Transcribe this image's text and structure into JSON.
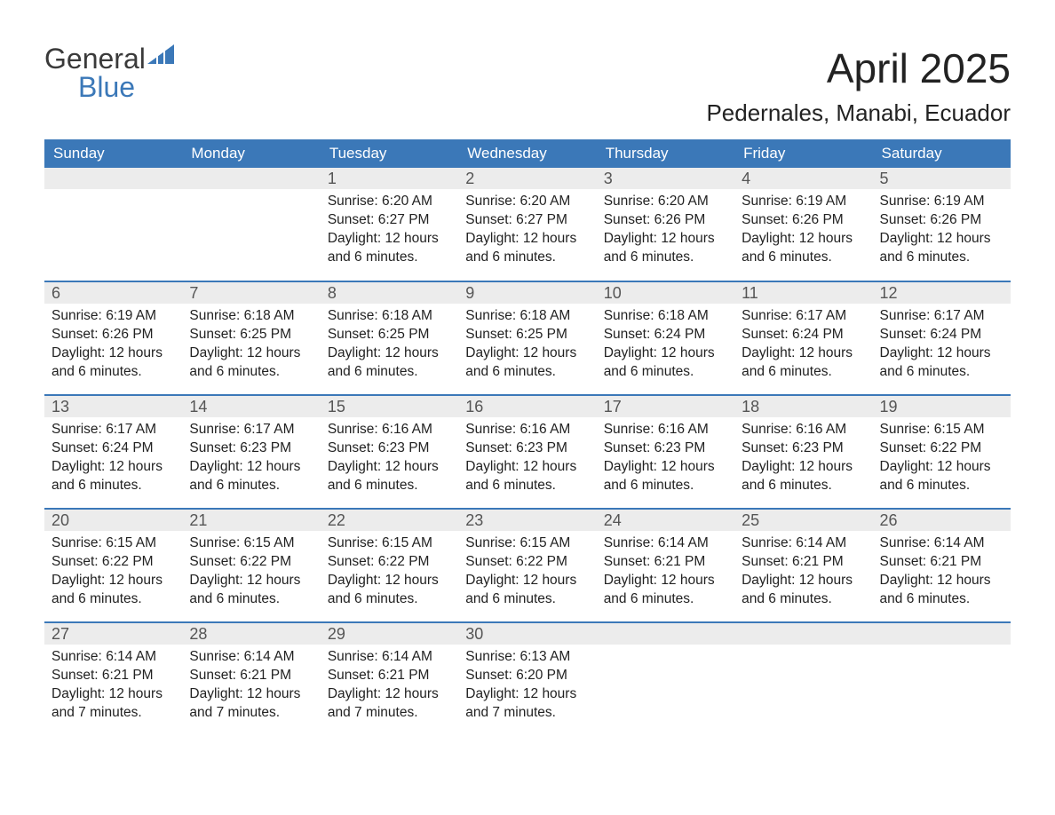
{
  "logo": {
    "text_general": "General",
    "text_blue": "Blue",
    "icon_color": "#3b78b8"
  },
  "title": {
    "month_year": "April 2025",
    "location": "Pedernales, Manabi, Ecuador"
  },
  "colors": {
    "header_bg": "#3b78b8",
    "header_text": "#ffffff",
    "band_bg": "#ececec",
    "row_border": "#3b78b8",
    "body_text": "#222222",
    "daynum_text": "#555555"
  },
  "weekdays": [
    "Sunday",
    "Monday",
    "Tuesday",
    "Wednesday",
    "Thursday",
    "Friday",
    "Saturday"
  ],
  "labels": {
    "sunrise": "Sunrise:",
    "sunset": "Sunset:",
    "daylight_prefix": "Daylight:"
  },
  "weeks": [
    [
      null,
      null,
      {
        "day": "1",
        "sunrise": "6:20 AM",
        "sunset": "6:27 PM",
        "daylight": "12 hours and 6 minutes."
      },
      {
        "day": "2",
        "sunrise": "6:20 AM",
        "sunset": "6:27 PM",
        "daylight": "12 hours and 6 minutes."
      },
      {
        "day": "3",
        "sunrise": "6:20 AM",
        "sunset": "6:26 PM",
        "daylight": "12 hours and 6 minutes."
      },
      {
        "day": "4",
        "sunrise": "6:19 AM",
        "sunset": "6:26 PM",
        "daylight": "12 hours and 6 minutes."
      },
      {
        "day": "5",
        "sunrise": "6:19 AM",
        "sunset": "6:26 PM",
        "daylight": "12 hours and 6 minutes."
      }
    ],
    [
      {
        "day": "6",
        "sunrise": "6:19 AM",
        "sunset": "6:26 PM",
        "daylight": "12 hours and 6 minutes."
      },
      {
        "day": "7",
        "sunrise": "6:18 AM",
        "sunset": "6:25 PM",
        "daylight": "12 hours and 6 minutes."
      },
      {
        "day": "8",
        "sunrise": "6:18 AM",
        "sunset": "6:25 PM",
        "daylight": "12 hours and 6 minutes."
      },
      {
        "day": "9",
        "sunrise": "6:18 AM",
        "sunset": "6:25 PM",
        "daylight": "12 hours and 6 minutes."
      },
      {
        "day": "10",
        "sunrise": "6:18 AM",
        "sunset": "6:24 PM",
        "daylight": "12 hours and 6 minutes."
      },
      {
        "day": "11",
        "sunrise": "6:17 AM",
        "sunset": "6:24 PM",
        "daylight": "12 hours and 6 minutes."
      },
      {
        "day": "12",
        "sunrise": "6:17 AM",
        "sunset": "6:24 PM",
        "daylight": "12 hours and 6 minutes."
      }
    ],
    [
      {
        "day": "13",
        "sunrise": "6:17 AM",
        "sunset": "6:24 PM",
        "daylight": "12 hours and 6 minutes."
      },
      {
        "day": "14",
        "sunrise": "6:17 AM",
        "sunset": "6:23 PM",
        "daylight": "12 hours and 6 minutes."
      },
      {
        "day": "15",
        "sunrise": "6:16 AM",
        "sunset": "6:23 PM",
        "daylight": "12 hours and 6 minutes."
      },
      {
        "day": "16",
        "sunrise": "6:16 AM",
        "sunset": "6:23 PM",
        "daylight": "12 hours and 6 minutes."
      },
      {
        "day": "17",
        "sunrise": "6:16 AM",
        "sunset": "6:23 PM",
        "daylight": "12 hours and 6 minutes."
      },
      {
        "day": "18",
        "sunrise": "6:16 AM",
        "sunset": "6:23 PM",
        "daylight": "12 hours and 6 minutes."
      },
      {
        "day": "19",
        "sunrise": "6:15 AM",
        "sunset": "6:22 PM",
        "daylight": "12 hours and 6 minutes."
      }
    ],
    [
      {
        "day": "20",
        "sunrise": "6:15 AM",
        "sunset": "6:22 PM",
        "daylight": "12 hours and 6 minutes."
      },
      {
        "day": "21",
        "sunrise": "6:15 AM",
        "sunset": "6:22 PM",
        "daylight": "12 hours and 6 minutes."
      },
      {
        "day": "22",
        "sunrise": "6:15 AM",
        "sunset": "6:22 PM",
        "daylight": "12 hours and 6 minutes."
      },
      {
        "day": "23",
        "sunrise": "6:15 AM",
        "sunset": "6:22 PM",
        "daylight": "12 hours and 6 minutes."
      },
      {
        "day": "24",
        "sunrise": "6:14 AM",
        "sunset": "6:21 PM",
        "daylight": "12 hours and 6 minutes."
      },
      {
        "day": "25",
        "sunrise": "6:14 AM",
        "sunset": "6:21 PM",
        "daylight": "12 hours and 6 minutes."
      },
      {
        "day": "26",
        "sunrise": "6:14 AM",
        "sunset": "6:21 PM",
        "daylight": "12 hours and 6 minutes."
      }
    ],
    [
      {
        "day": "27",
        "sunrise": "6:14 AM",
        "sunset": "6:21 PM",
        "daylight": "12 hours and 7 minutes."
      },
      {
        "day": "28",
        "sunrise": "6:14 AM",
        "sunset": "6:21 PM",
        "daylight": "12 hours and 7 minutes."
      },
      {
        "day": "29",
        "sunrise": "6:14 AM",
        "sunset": "6:21 PM",
        "daylight": "12 hours and 7 minutes."
      },
      {
        "day": "30",
        "sunrise": "6:13 AM",
        "sunset": "6:20 PM",
        "daylight": "12 hours and 7 minutes."
      },
      null,
      null,
      null
    ]
  ]
}
